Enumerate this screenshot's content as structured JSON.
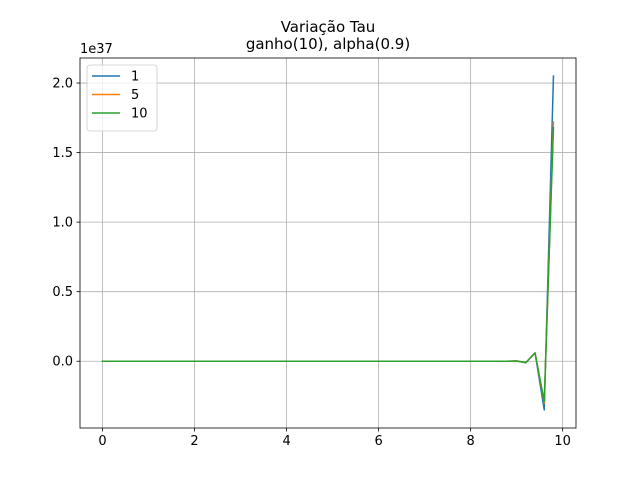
{
  "chart_data": {
    "type": "line",
    "title": "Variação Tau",
    "subtitle": "ganho(10), alpha(0.9)",
    "xlabel": "",
    "ylabel": "",
    "y_offset_text": "1e37",
    "xlim": [
      -0.49,
      10.29
    ],
    "ylim": [
      -0.48,
      2.18
    ],
    "x_ticks": [
      0,
      2,
      4,
      6,
      8,
      10
    ],
    "x_tick_labels": [
      "0",
      "2",
      "4",
      "6",
      "8",
      "10"
    ],
    "y_ticks": [
      0.0,
      0.5,
      1.0,
      1.5,
      2.0
    ],
    "y_tick_labels": [
      "0.0",
      "0.5",
      "1.0",
      "1.5",
      "2.0"
    ],
    "grid": true,
    "legend_position": "upper-left",
    "series": [
      {
        "name": "1",
        "color": "#1f77b4",
        "x": [
          0,
          1,
          2,
          3,
          4,
          5,
          6,
          7,
          8,
          8.8,
          9.0,
          9.2,
          9.4,
          9.6,
          9.8
        ],
        "y": [
          0,
          0,
          0,
          0,
          0,
          0,
          0,
          0,
          0,
          0.0,
          0.002,
          -0.01,
          0.06,
          -0.35,
          2.05
        ]
      },
      {
        "name": "5",
        "color": "#ff7f0e",
        "x": [
          0,
          1,
          2,
          3,
          4,
          5,
          6,
          7,
          8,
          8.8,
          9.0,
          9.2,
          9.4,
          9.6,
          9.8
        ],
        "y": [
          0,
          0,
          0,
          0,
          0,
          0,
          0,
          0,
          0,
          0.0,
          0.002,
          -0.01,
          0.06,
          -0.3,
          1.72
        ]
      },
      {
        "name": "10",
        "color": "#2ca02c",
        "x": [
          0,
          1,
          2,
          3,
          4,
          5,
          6,
          7,
          8,
          8.8,
          9.0,
          9.2,
          9.4,
          9.6,
          9.8
        ],
        "y": [
          0,
          0,
          0,
          0,
          0,
          0,
          0,
          0,
          0,
          0.0,
          0.002,
          -0.01,
          0.06,
          -0.29,
          1.68
        ]
      }
    ]
  }
}
